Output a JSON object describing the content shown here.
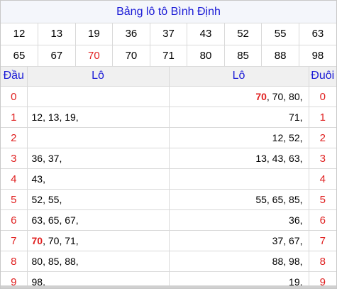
{
  "title": "Bảng lô tô Bình Định",
  "numbers_row1": [
    "12",
    "13",
    "19",
    "36",
    "37",
    "43",
    "52",
    "55",
    "63"
  ],
  "numbers_row2": [
    "65",
    "67",
    "70",
    "70",
    "71",
    "80",
    "85",
    "88",
    "98"
  ],
  "highlight_value": "70",
  "headers": {
    "dau": "Đầu",
    "lo_left": "Lô",
    "lo_right": "Lô",
    "duoi": "Đuôi"
  },
  "rows": [
    {
      "dau": "0",
      "left": [],
      "right": [
        "70",
        "70",
        "80"
      ],
      "duoi": "0"
    },
    {
      "dau": "1",
      "left": [
        "12",
        "13",
        "19"
      ],
      "right": [
        "71"
      ],
      "duoi": "1"
    },
    {
      "dau": "2",
      "left": [],
      "right": [
        "12",
        "52"
      ],
      "duoi": "2"
    },
    {
      "dau": "3",
      "left": [
        "36",
        "37"
      ],
      "right": [
        "13",
        "43",
        "63"
      ],
      "duoi": "3"
    },
    {
      "dau": "4",
      "left": [
        "43"
      ],
      "right": [],
      "duoi": "4"
    },
    {
      "dau": "5",
      "left": [
        "52",
        "55"
      ],
      "right": [
        "55",
        "65",
        "85"
      ],
      "duoi": "5"
    },
    {
      "dau": "6",
      "left": [
        "63",
        "65",
        "67"
      ],
      "right": [
        "36"
      ],
      "duoi": "6"
    },
    {
      "dau": "7",
      "left": [
        "70",
        "70",
        "71"
      ],
      "right": [
        "37",
        "67"
      ],
      "duoi": "7"
    },
    {
      "dau": "8",
      "left": [
        "80",
        "85",
        "88"
      ],
      "right": [
        "88",
        "98"
      ],
      "duoi": "8"
    },
    {
      "dau": "9",
      "left": [
        "98"
      ],
      "right": [
        "19"
      ],
      "duoi": "9"
    }
  ],
  "highlights": {
    "numbers_row2": [
      2
    ],
    "left": {
      "7": [
        0
      ]
    },
    "right": {
      "0": [
        0
      ]
    }
  }
}
